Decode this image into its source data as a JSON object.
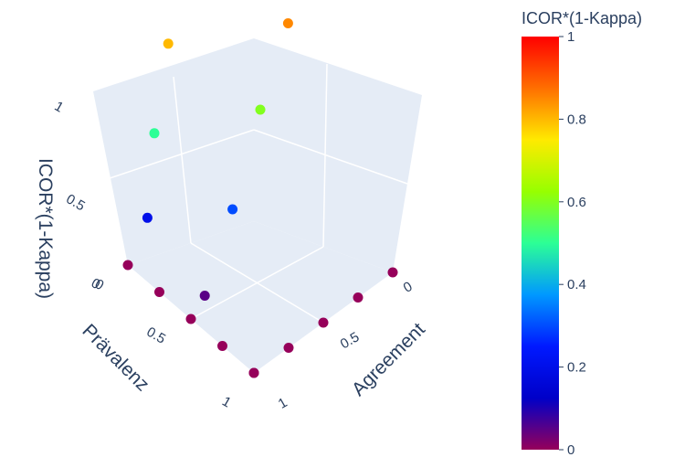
{
  "chart_data": {
    "type": "scatter3d",
    "title": "",
    "axes": {
      "x": {
        "label": "Prävalenz",
        "range": [
          0,
          1
        ],
        "tick_labels": [
          "0",
          "0.5",
          "1"
        ]
      },
      "y": {
        "label": "Agreement",
        "range": [
          0,
          1
        ],
        "tick_labels": [
          "0",
          "0.5",
          "1"
        ]
      },
      "z": {
        "label": "ICOR*(1-Kappa)",
        "range": [
          0,
          1
        ],
        "tick_labels": [
          "0",
          "0.5",
          "1"
        ]
      }
    },
    "color": {
      "variable": "ICOR*(1-Kappa)",
      "colorscale": "Rainbow",
      "range": [
        0,
        1
      ],
      "colorbar_title": "ICOR*(1-Kappa)",
      "colorbar_ticks": [
        "0",
        "0.2",
        "0.4",
        "0.6",
        "0.8",
        "1"
      ]
    },
    "series": [
      {
        "x": [
          0,
          0.25,
          0.5,
          0.75,
          1.0
        ],
        "y": [
          1.0,
          1.0,
          1.0,
          1.0,
          1.0
        ],
        "z": [
          0,
          0,
          0,
          0,
          0
        ]
      },
      {
        "x": [
          1.0,
          1.0,
          1.0,
          1.0,
          1.0
        ],
        "y": [
          0,
          0.25,
          0.5,
          0.75,
          1.0
        ],
        "z": [
          0,
          0,
          0,
          0,
          0
        ]
      },
      {
        "x": [
          0.5,
          0.5,
          0.5,
          0.5,
          0.5
        ],
        "y": [
          0.9,
          0.7,
          0.5,
          0.3,
          0.1
        ],
        "z": [
          0.05,
          0.3,
          0.6,
          0.85,
          1.0
        ]
      },
      {
        "x": [
          0.1,
          0.1,
          0.1,
          0.1,
          0.1
        ],
        "y": [
          0.95,
          0.9,
          0.8,
          0.65,
          0.5
        ],
        "z": [
          0.2,
          0.5,
          0.8,
          0.95,
          1.0
        ]
      }
    ],
    "grid": true,
    "legend": "none"
  }
}
